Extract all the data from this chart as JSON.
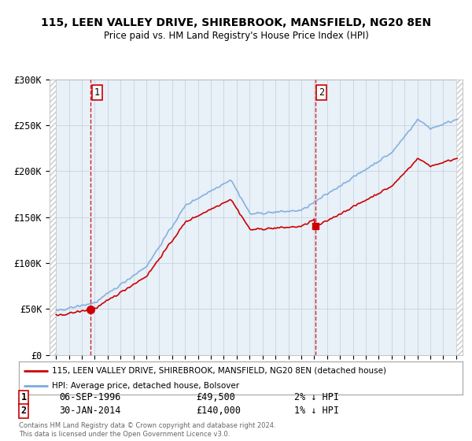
{
  "title": "115, LEEN VALLEY DRIVE, SHIREBROOK, MANSFIELD, NG20 8EN",
  "subtitle": "Price paid vs. HM Land Registry's House Price Index (HPI)",
  "legend_line1": "115, LEEN VALLEY DRIVE, SHIREBROOK, MANSFIELD, NG20 8EN (detached house)",
  "legend_line2": "HPI: Average price, detached house, Bolsover",
  "footnote": "Contains HM Land Registry data © Crown copyright and database right 2024.\nThis data is licensed under the Open Government Licence v3.0.",
  "sale1_date": "06-SEP-1996",
  "sale1_price": "£49,500",
  "sale1_hpi": "2% ↓ HPI",
  "sale2_date": "30-JAN-2014",
  "sale2_price": "£140,000",
  "sale2_hpi": "1% ↓ HPI",
  "sale1_x": 1996.67,
  "sale1_y": 49500,
  "sale2_x": 2014.08,
  "sale2_y": 140000,
  "ylim": [
    0,
    300000
  ],
  "xlim": [
    1993.5,
    2025.5
  ],
  "yticks": [
    0,
    50000,
    100000,
    150000,
    200000,
    250000,
    300000
  ],
  "ytick_labels": [
    "£0",
    "£50K",
    "£100K",
    "£150K",
    "£200K",
    "£250K",
    "£300K"
  ],
  "xticks": [
    1994,
    1995,
    1996,
    1997,
    1998,
    1999,
    2000,
    2001,
    2002,
    2003,
    2004,
    2005,
    2006,
    2007,
    2008,
    2009,
    2010,
    2011,
    2012,
    2013,
    2014,
    2015,
    2016,
    2017,
    2018,
    2019,
    2020,
    2021,
    2022,
    2023,
    2024,
    2025
  ],
  "red_color": "#cc0000",
  "blue_color": "#7aabdb",
  "plot_bg": "#e8f0f8",
  "grid_color": "#c8d4e0",
  "hatch_color": "#c8c8c8"
}
